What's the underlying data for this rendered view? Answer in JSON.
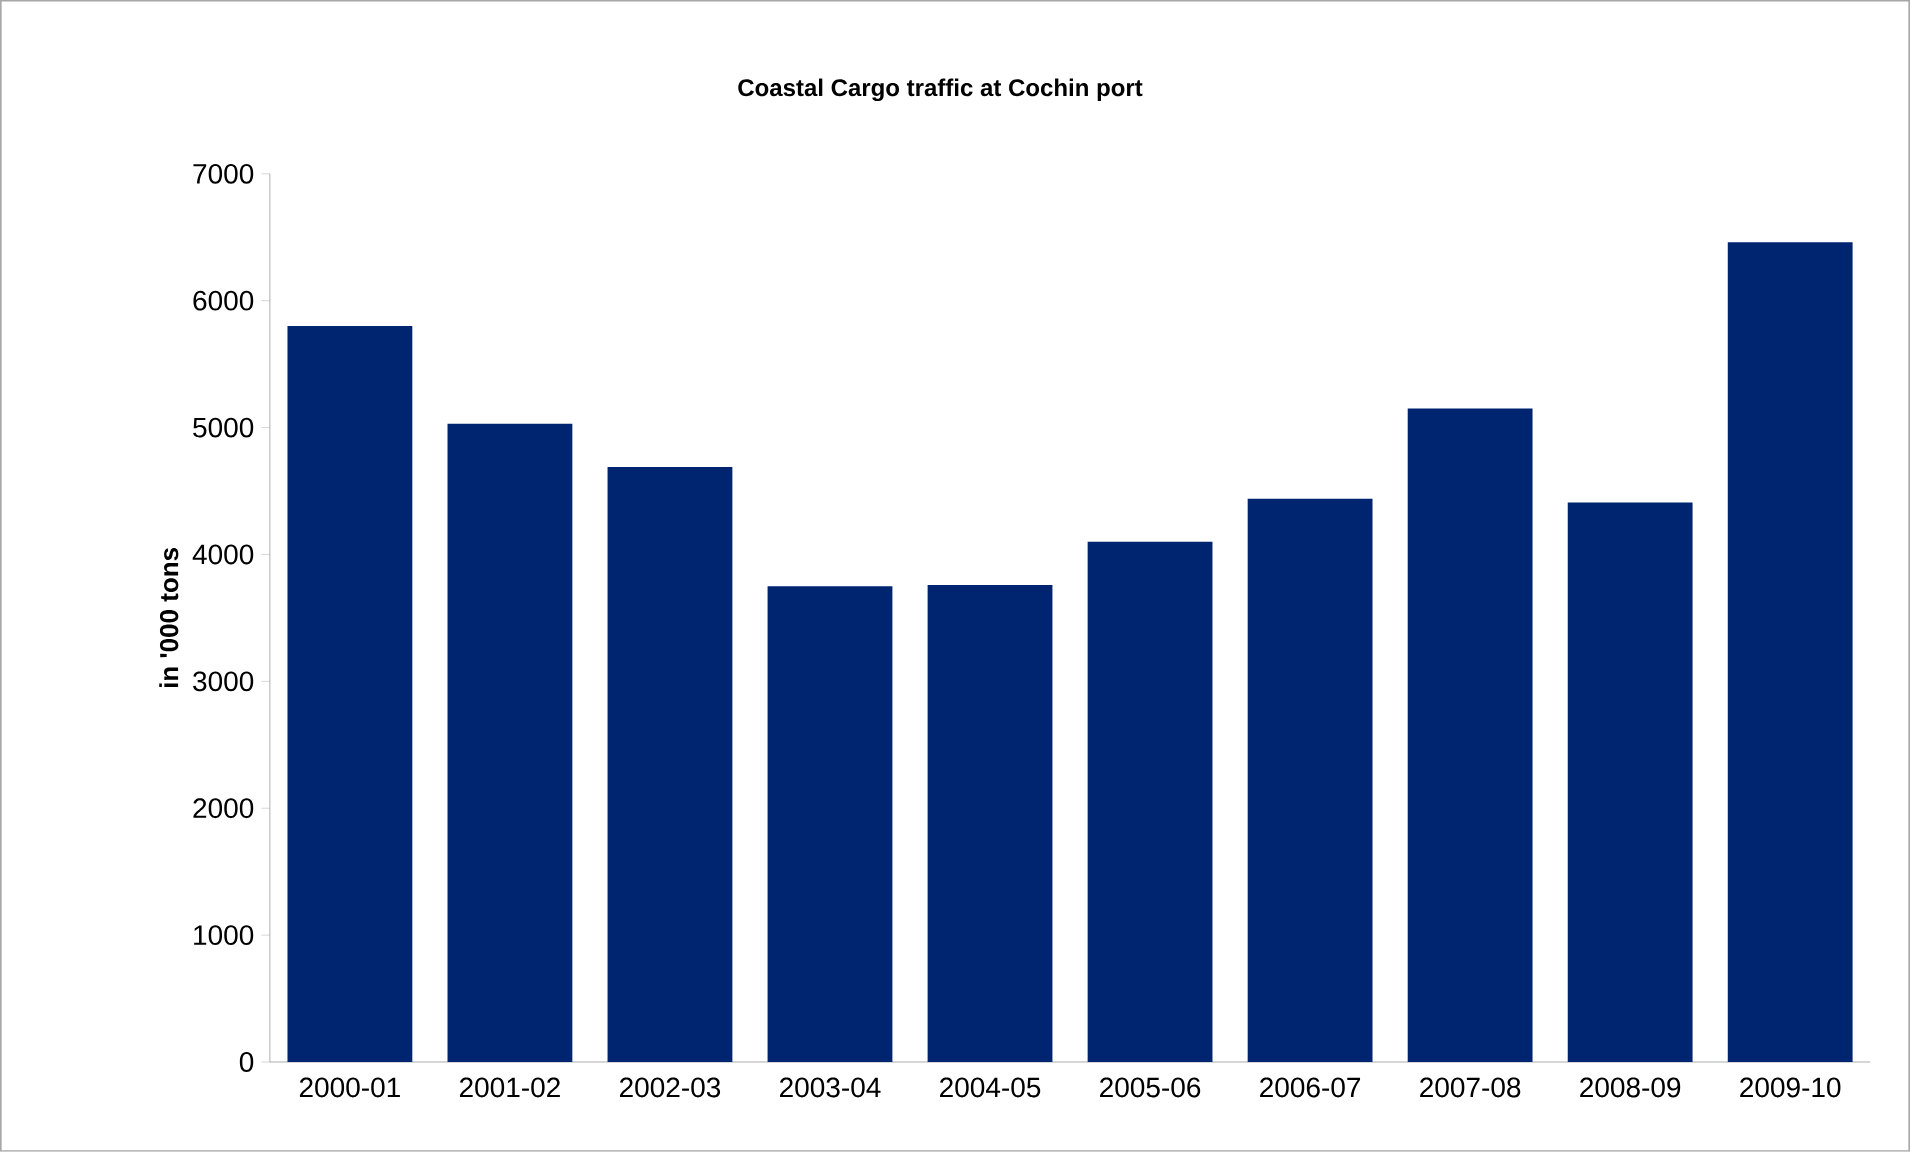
{
  "chart_data": {
    "type": "bar",
    "title": "Coastal Cargo traffic at Cochin port",
    "ylabel": "in '000 tons",
    "categories": [
      "2000-01",
      "2001-02",
      "2002-03",
      "2003-04",
      "2004-05",
      "2005-06",
      "2006-07",
      "2007-08",
      "2008-09",
      "2009-10"
    ],
    "values": [
      5800,
      5030,
      4690,
      3750,
      3760,
      4100,
      4440,
      5150,
      4410,
      6460
    ],
    "color": "#002570",
    "ylim": [
      0,
      7000
    ],
    "yticks": [
      0,
      1000,
      2000,
      3000,
      4000,
      5000,
      6000,
      7000
    ]
  }
}
